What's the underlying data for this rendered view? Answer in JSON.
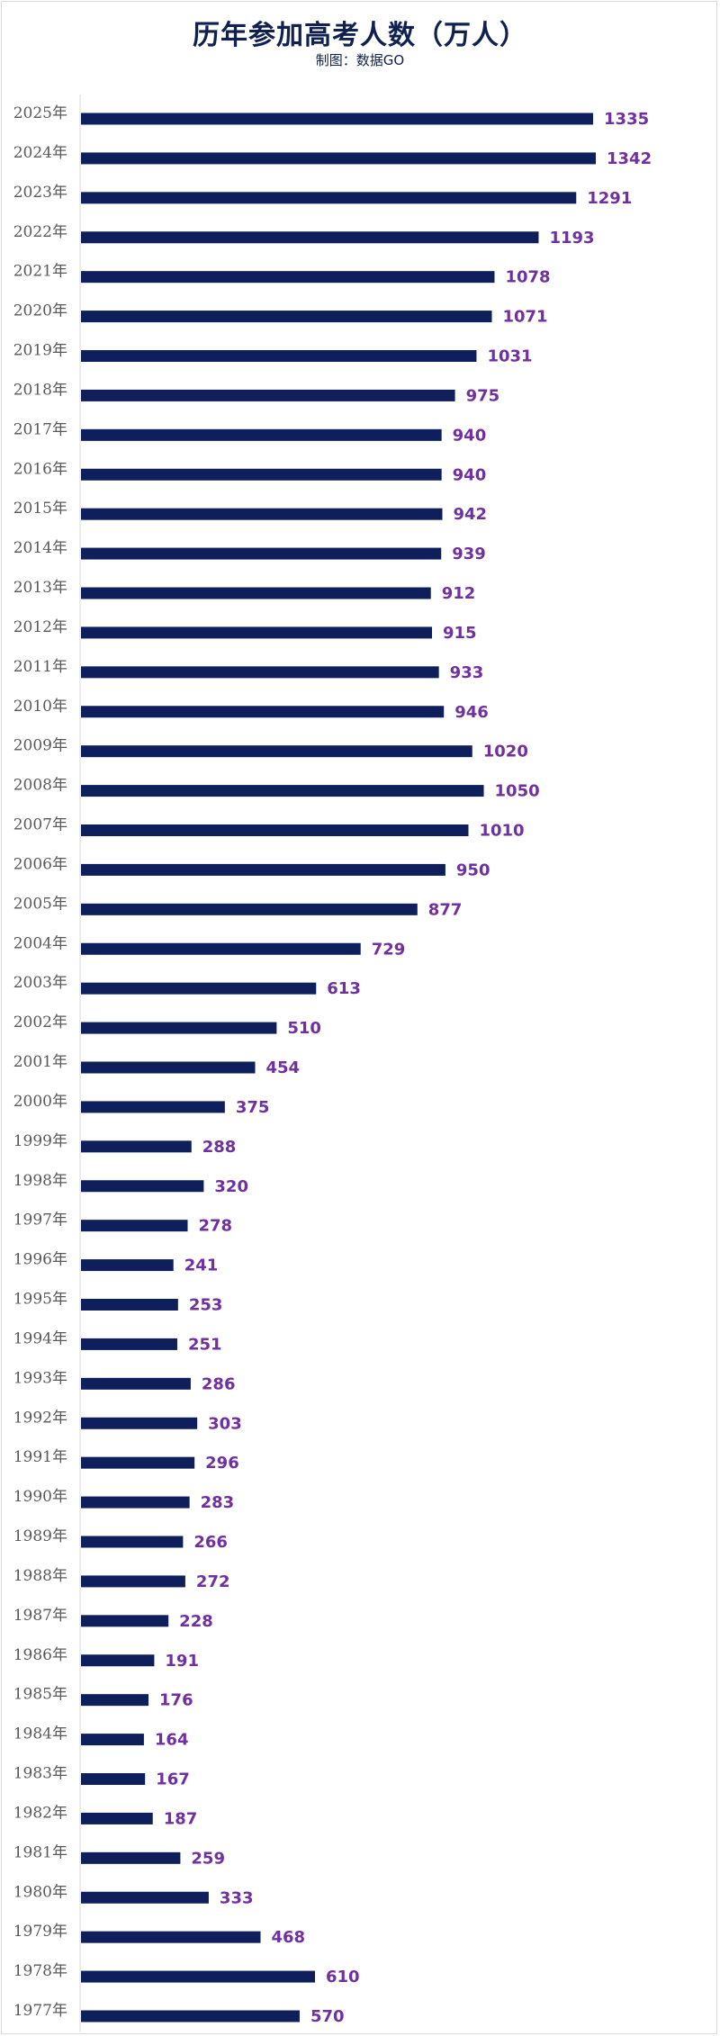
{
  "chart_data": {
    "type": "bar",
    "orientation": "horizontal",
    "title": "历年参加高考人数（万人）",
    "subtitle": "制图：数据GO",
    "xlabel": "",
    "ylabel": "",
    "xlim": [
      0,
      1400
    ],
    "grid": false,
    "bar_color": "#0f1f5c",
    "label_color": "#7030a0",
    "categories": [
      "2025年",
      "2024年",
      "2023年",
      "2022年",
      "2021年",
      "2020年",
      "2019年",
      "2018年",
      "2017年",
      "2016年",
      "2015年",
      "2014年",
      "2013年",
      "2012年",
      "2011年",
      "2010年",
      "2009年",
      "2008年",
      "2007年",
      "2006年",
      "2005年",
      "2004年",
      "2003年",
      "2002年",
      "2001年",
      "2000年",
      "1999年",
      "1998年",
      "1997年",
      "1996年",
      "1995年",
      "1994年",
      "1993年",
      "1992年",
      "1991年",
      "1990年",
      "1989年",
      "1988年",
      "1987年",
      "1986年",
      "1985年",
      "1984年",
      "1983年",
      "1982年",
      "1981年",
      "1980年",
      "1979年",
      "1978年",
      "1977年"
    ],
    "values": [
      1335,
      1342,
      1291,
      1193,
      1078,
      1071,
      1031,
      975,
      940,
      940,
      942,
      939,
      912,
      915,
      933,
      946,
      1020,
      1050,
      1010,
      950,
      877,
      729,
      613,
      510,
      454,
      375,
      288,
      320,
      278,
      241,
      253,
      251,
      286,
      303,
      296,
      283,
      266,
      272,
      228,
      191,
      176,
      164,
      167,
      187,
      259,
      333,
      468,
      610,
      570
    ]
  }
}
